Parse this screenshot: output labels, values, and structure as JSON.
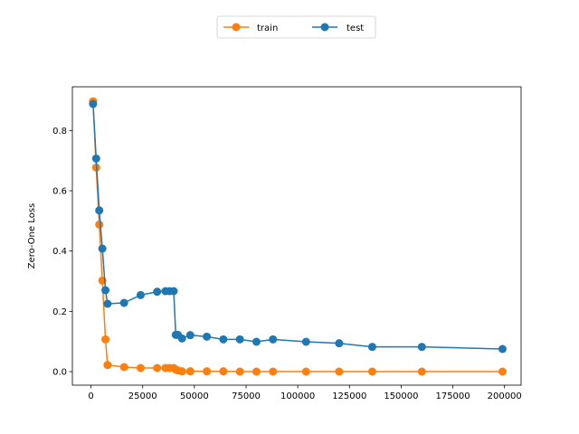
{
  "chart_data": {
    "type": "line",
    "title": "",
    "xlabel": "",
    "ylabel": "Zero-One Loss",
    "xlim": [
      -9000,
      208000
    ],
    "ylim": [
      -0.045,
      0.945
    ],
    "x_ticks": [
      0,
      25000,
      50000,
      75000,
      100000,
      125000,
      150000,
      175000,
      200000
    ],
    "y_ticks": [
      0.0,
      0.2,
      0.4,
      0.6,
      0.8
    ],
    "x_tick_labels": [
      "0",
      "25000",
      "50000",
      "75000",
      "100000",
      "125000",
      "150000",
      "175000",
      "200000"
    ],
    "y_tick_labels": [
      "0.0",
      "0.2",
      "0.4",
      "0.6",
      "0.8"
    ],
    "grid": false,
    "legend": "top-center, outside, 2 columns",
    "series": [
      {
        "name": "train",
        "color": "#ff7f0e",
        "marker": "circle",
        "points": [
          [
            1000,
            0.897
          ],
          [
            2500,
            0.677
          ],
          [
            4000,
            0.488
          ],
          [
            5500,
            0.302
          ],
          [
            7000,
            0.107
          ],
          [
            8000,
            0.022
          ],
          [
            16000,
            0.015
          ],
          [
            24000,
            0.012
          ],
          [
            32000,
            0.012
          ],
          [
            36000,
            0.012
          ],
          [
            38000,
            0.012
          ],
          [
            40000,
            0.012
          ],
          [
            41000,
            0.007
          ],
          [
            42000,
            0.004
          ],
          [
            44000,
            0.001
          ],
          [
            48000,
            0.001
          ],
          [
            56000,
            0.001
          ],
          [
            64000,
            0.001
          ],
          [
            72000,
            0.0
          ],
          [
            80000,
            0.0
          ],
          [
            88000,
            0.0
          ],
          [
            104000,
            0.0
          ],
          [
            120000,
            0.0
          ],
          [
            136000,
            0.0
          ],
          [
            160000,
            0.0
          ],
          [
            199000,
            0.0
          ]
        ]
      },
      {
        "name": "test",
        "color": "#1f77b4",
        "marker": "circle",
        "points": [
          [
            1000,
            0.888
          ],
          [
            2500,
            0.707
          ],
          [
            4000,
            0.535
          ],
          [
            5500,
            0.408
          ],
          [
            7000,
            0.27
          ],
          [
            8000,
            0.225
          ],
          [
            16000,
            0.228
          ],
          [
            24000,
            0.254
          ],
          [
            32000,
            0.265
          ],
          [
            36000,
            0.267
          ],
          [
            38000,
            0.267
          ],
          [
            40000,
            0.267
          ],
          [
            41000,
            0.122
          ],
          [
            42000,
            0.122
          ],
          [
            44000,
            0.11
          ],
          [
            48000,
            0.121
          ],
          [
            56000,
            0.116
          ],
          [
            64000,
            0.107
          ],
          [
            72000,
            0.107
          ],
          [
            80000,
            0.099
          ],
          [
            88000,
            0.107
          ],
          [
            104000,
            0.099
          ],
          [
            120000,
            0.094
          ],
          [
            136000,
            0.082
          ],
          [
            160000,
            0.082
          ],
          [
            199000,
            0.075
          ]
        ]
      }
    ]
  }
}
